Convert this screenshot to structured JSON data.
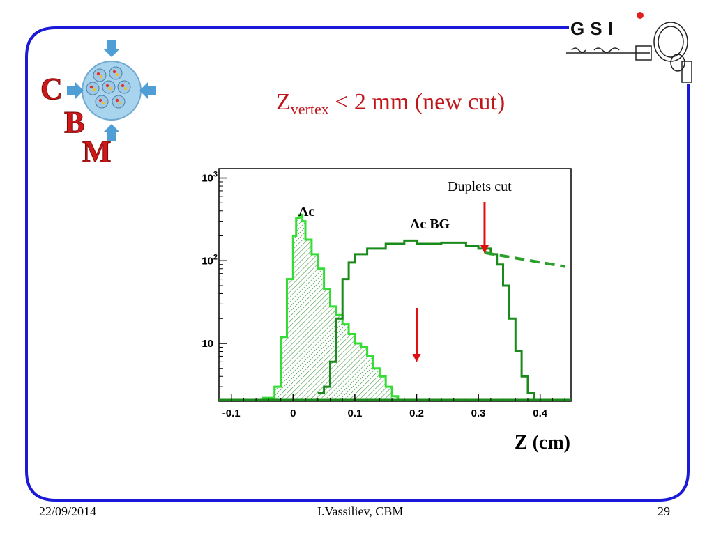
{
  "slide": {
    "title_main": "Z",
    "title_sub": "vertex",
    "title_rest": " < 2 mm (new cut)",
    "footer_date": "22/09/2014",
    "footer_author": "I.Vassiliev, CBM",
    "page_number": "29",
    "frame_color": "#1a1ad8",
    "title_color": "#c0161b"
  },
  "logos": {
    "cbm_letters": [
      "C",
      "B",
      "M"
    ],
    "gsi_text": "GSI"
  },
  "chart_data": {
    "type": "histogram",
    "title": "",
    "xlabel": "Z (cm)",
    "ylabel": "",
    "xlim": [
      -0.12,
      0.45
    ],
    "ylim": [
      2,
      1300
    ],
    "yscale": "log",
    "x_ticks": [
      "-0.1",
      "0",
      "0.1",
      "0.2",
      "0.3",
      "0.4"
    ],
    "x_tick_values": [
      -0.1,
      0,
      0.1,
      0.2,
      0.3,
      0.4
    ],
    "y_ticks": [
      "10",
      "10^2",
      "10^3"
    ],
    "y_tick_values": [
      10,
      100,
      1000
    ],
    "annotations": {
      "duplets_cut": "Duplets cut",
      "lambda_c": "Λc",
      "lambda_c_bg": "Λc BG"
    },
    "series": [
      {
        "name": "Λc",
        "color": "#33dd33",
        "hatched": true,
        "x": [
          -0.05,
          -0.03,
          -0.02,
          -0.01,
          0.0,
          0.005,
          0.01,
          0.015,
          0.02,
          0.03,
          0.04,
          0.05,
          0.06,
          0.07,
          0.08,
          0.09,
          0.1,
          0.11,
          0.12,
          0.13,
          0.14,
          0.15,
          0.16,
          0.17
        ],
        "y": [
          2.2,
          3,
          12,
          60,
          200,
          330,
          360,
          300,
          180,
          120,
          80,
          45,
          28,
          22,
          17,
          13,
          10,
          9,
          7,
          5,
          4,
          3,
          2.3,
          2.1
        ]
      },
      {
        "name": "Λc BG",
        "color": "#1a8a1a",
        "hatched": false,
        "x": [
          0.04,
          0.05,
          0.06,
          0.07,
          0.08,
          0.09,
          0.1,
          0.12,
          0.15,
          0.18,
          0.2,
          0.24,
          0.28,
          0.3,
          0.32,
          0.33,
          0.34,
          0.35,
          0.36,
          0.37,
          0.38,
          0.39
        ],
        "y": [
          2.5,
          3,
          6,
          20,
          60,
          95,
          120,
          140,
          160,
          175,
          160,
          165,
          150,
          140,
          120,
          90,
          50,
          20,
          8,
          4,
          2.5,
          2.1
        ]
      }
    ],
    "extrapolation": {
      "x": [
        0.31,
        0.44
      ],
      "y": [
        125,
        85
      ]
    },
    "cut_arrows_x": [
      0.31,
      0.2
    ]
  }
}
